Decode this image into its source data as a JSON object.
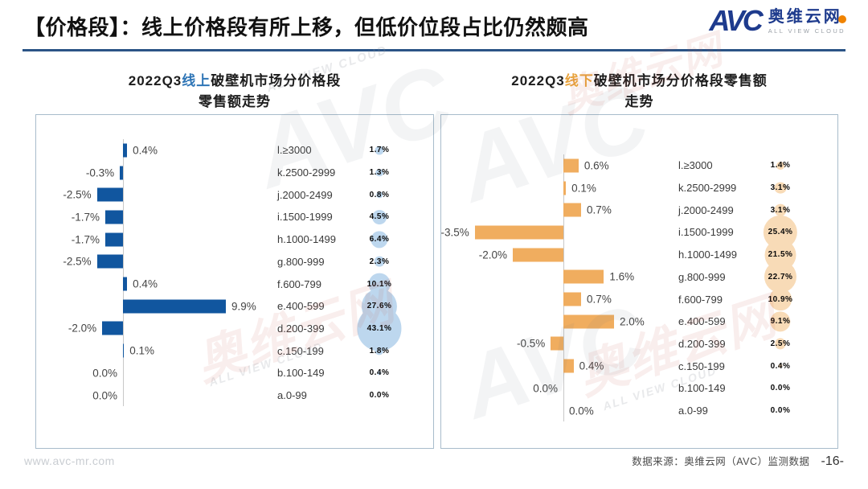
{
  "header": {
    "title": "【价格段】：线上价格段有所上移，但低价位段占比仍然颇高",
    "logo": {
      "abbr": "AVC",
      "name_cn": "奥维云网",
      "name_en": "ALL VIEW CLOUD"
    }
  },
  "watermark": {
    "abbr": "AVC",
    "name_cn": "奥维云网",
    "name_en": "ALL VIEW CLOUD"
  },
  "footer": {
    "website": "www.avc-mr.com",
    "source": "数据来源：奥维云网（AVC）监测数据",
    "page": "-16-"
  },
  "chart_data": [
    {
      "type": "bar",
      "title": {
        "full": "2022Q3线上破壁机市场分价格段零售额走势",
        "prefix": "2022Q3",
        "channel": "线上",
        "channel_color": "#2E75B6",
        "line1_rest": "破壁机市场分价格段",
        "line2": "零售额走势"
      },
      "bar_color": "#11569F",
      "bubble_color": "#BDD7EE",
      "categories": [
        "l.≥3000",
        "k.2500-2999",
        "j.2000-2499",
        "i.1500-1999",
        "h.1000-1499",
        "g.800-999",
        "f.600-799",
        "e.400-599",
        "d.200-399",
        "c.150-199",
        "b.100-149",
        "a.0-99"
      ],
      "series": [
        {
          "id": "growth",
          "values": [
            0.4,
            -0.3,
            -2.5,
            -1.7,
            -1.7,
            -2.5,
            0.4,
            9.9,
            -2.0,
            0.1,
            0.0,
            0.0
          ],
          "labels": [
            "0.4%",
            "-0.3%",
            "-2.5%",
            "-1.7%",
            "-1.7%",
            "-2.5%",
            "0.4%",
            "9.9%",
            "-2.0%",
            "0.1%",
            "0.0%",
            "0.0%"
          ],
          "label_sides": [
            "right",
            "left",
            "left",
            "left",
            "left",
            "left",
            "right",
            "right",
            "left",
            "right",
            "left",
            "left"
          ]
        },
        {
          "id": "share",
          "values": [
            1.7,
            1.3,
            0.8,
            4.5,
            6.4,
            2.3,
            10.1,
            27.6,
            43.1,
            1.8,
            0.4,
            0.0
          ],
          "labels": [
            "1.7%",
            "1.3%",
            "0.8%",
            "4.5%",
            "6.4%",
            "2.3%",
            "10.1%",
            "27.6%",
            "43.1%",
            "1.8%",
            "0.4%",
            "0.0%"
          ]
        }
      ]
    },
    {
      "type": "bar",
      "title": {
        "full": "2022Q3线下破壁机市场分价格段零售额走势",
        "prefix": "2022Q3",
        "channel": "线下",
        "channel_color": "#E8A33D",
        "line1_rest": "破壁机市场分价格段零售额",
        "line2": "走势"
      },
      "bar_color": "#F0AD5F",
      "bubble_color": "#F8DBB7",
      "categories": [
        "l.≥3000",
        "k.2500-2999",
        "j.2000-2499",
        "i.1500-1999",
        "h.1000-1499",
        "g.800-999",
        "f.600-799",
        "e.400-599",
        "d.200-399",
        "c.150-199",
        "b.100-149",
        "a.0-99"
      ],
      "series": [
        {
          "id": "growth",
          "values": [
            0.6,
            0.1,
            0.7,
            -3.5,
            -2.0,
            1.6,
            0.7,
            2.0,
            -0.5,
            0.4,
            0.0,
            0.0
          ],
          "labels": [
            "0.6%",
            "0.1%",
            "0.7%",
            "-3.5%",
            "-2.0%",
            "1.6%",
            "0.7%",
            "2.0%",
            "-0.5%",
            "0.4%",
            "0.0%",
            "0.0%"
          ],
          "label_sides": [
            "right",
            "right",
            "right",
            "left",
            "left",
            "right",
            "right",
            "right",
            "left",
            "right",
            "left",
            "right"
          ]
        },
        {
          "id": "share",
          "values": [
            1.4,
            3.1,
            3.1,
            25.4,
            21.5,
            22.7,
            10.9,
            9.1,
            2.5,
            0.4,
            0.0,
            0.0
          ],
          "labels": [
            "1.4%",
            "3.1%",
            "3.1%",
            "25.4%",
            "21.5%",
            "22.7%",
            "10.9%",
            "9.1%",
            "2.5%",
            "0.4%",
            "0.0%",
            "0.0%"
          ]
        }
      ]
    }
  ]
}
